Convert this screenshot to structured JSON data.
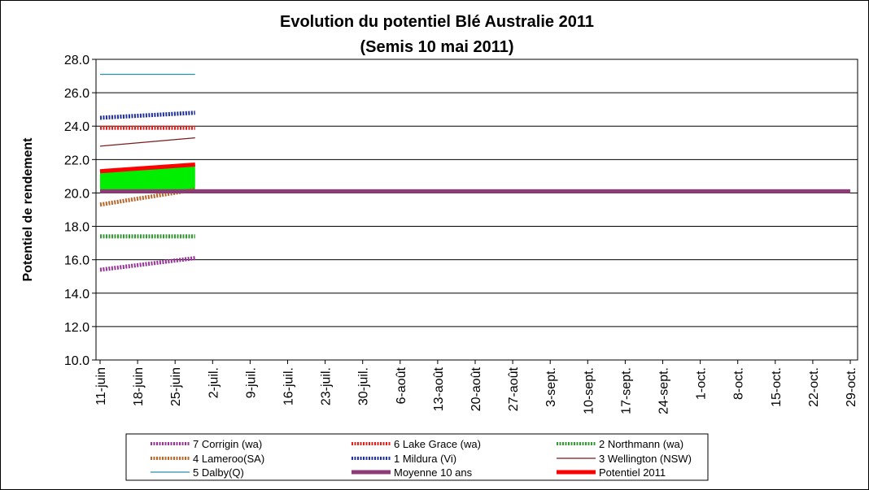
{
  "chart_data": {
    "type": "line",
    "title": "Evolution du potentiel Blé Australie 2011",
    "subtitle": "(Semis 10 mai 2011)",
    "ylabel": "Potentiel de rendement",
    "xlabel": "",
    "ylim": [
      10.0,
      28.0
    ],
    "y_ticks": [
      "10.0",
      "12.0",
      "14.0",
      "16.0",
      "18.0",
      "20.0",
      "22.0",
      "24.0",
      "26.0",
      "28.0"
    ],
    "x_tick_labels": [
      "11-juin",
      "18-juin",
      "25-juin",
      "2-juil.",
      "9-juil.",
      "16-juil.",
      "23-juil.",
      "30-juil.",
      "6-août",
      "13-août",
      "20-août",
      "27-août",
      "3-sept.",
      "10-sept.",
      "17-sept.",
      "24-sept.",
      "1-oct.",
      "8-oct.",
      "15-oct.",
      "22-oct.",
      "29-oct."
    ],
    "x_range_days": [
      0,
      150
    ],
    "grid": "horizontal",
    "legend_position": "bottom",
    "series": [
      {
        "name": "7 Corrigin (wa)",
        "color": "#993399",
        "style": "dotted",
        "x": [
          0,
          19
        ],
        "values": [
          15.4,
          16.1
        ]
      },
      {
        "name": "6 Lake Grace (wa)",
        "color": "#e0201c",
        "style": "dotted",
        "x": [
          0,
          19
        ],
        "values": [
          23.9,
          23.9
        ]
      },
      {
        "name": "2 Northmann (wa)",
        "color": "#339933",
        "style": "dotted",
        "x": [
          0,
          19
        ],
        "values": [
          17.4,
          17.4
        ]
      },
      {
        "name": "4 Lameroo(SA)",
        "color": "#b8652a",
        "style": "dotted",
        "x": [
          0,
          19
        ],
        "values": [
          19.3,
          20.2
        ]
      },
      {
        "name": "1 Mildura (Vi)",
        "color": "#1f2f9f",
        "style": "dotted",
        "x": [
          0,
          19
        ],
        "values": [
          24.5,
          24.8
        ]
      },
      {
        "name": "3 Wellington (NSW)",
        "color": "#7a1b1b",
        "style": "thin",
        "x": [
          0,
          19
        ],
        "values": [
          22.8,
          23.3
        ]
      },
      {
        "name": "5 Dalby(Q)",
        "color": "#2f8fa8",
        "style": "thin",
        "x": [
          0,
          19
        ],
        "values": [
          27.1,
          27.1
        ]
      },
      {
        "name": "Moyenne 10 ans",
        "color": "#8e3c78",
        "style": "thick",
        "x": [
          0,
          150
        ],
        "values": [
          20.1,
          20.1
        ]
      },
      {
        "name": "Potentiel 2011",
        "color": "#ff0000",
        "style": "thick-red",
        "x": [
          0,
          19
        ],
        "values": [
          21.3,
          21.7
        ]
      }
    ],
    "area_fill": {
      "color": "#00ee00",
      "x": [
        0,
        19
      ],
      "upper": [
        21.3,
        21.7
      ],
      "lower": [
        20.1,
        20.1
      ]
    },
    "colors": {
      "plot_border": "#000000",
      "grid": "#000000"
    }
  },
  "legend": {
    "items": [
      "7 Corrigin (wa)",
      "6 Lake Grace (wa)",
      "2 Northmann (wa)",
      "4 Lameroo(SA)",
      "1 Mildura (Vi)",
      "3 Wellington (NSW)",
      "5 Dalby(Q)",
      "Moyenne 10 ans",
      "Potentiel 2011"
    ]
  }
}
